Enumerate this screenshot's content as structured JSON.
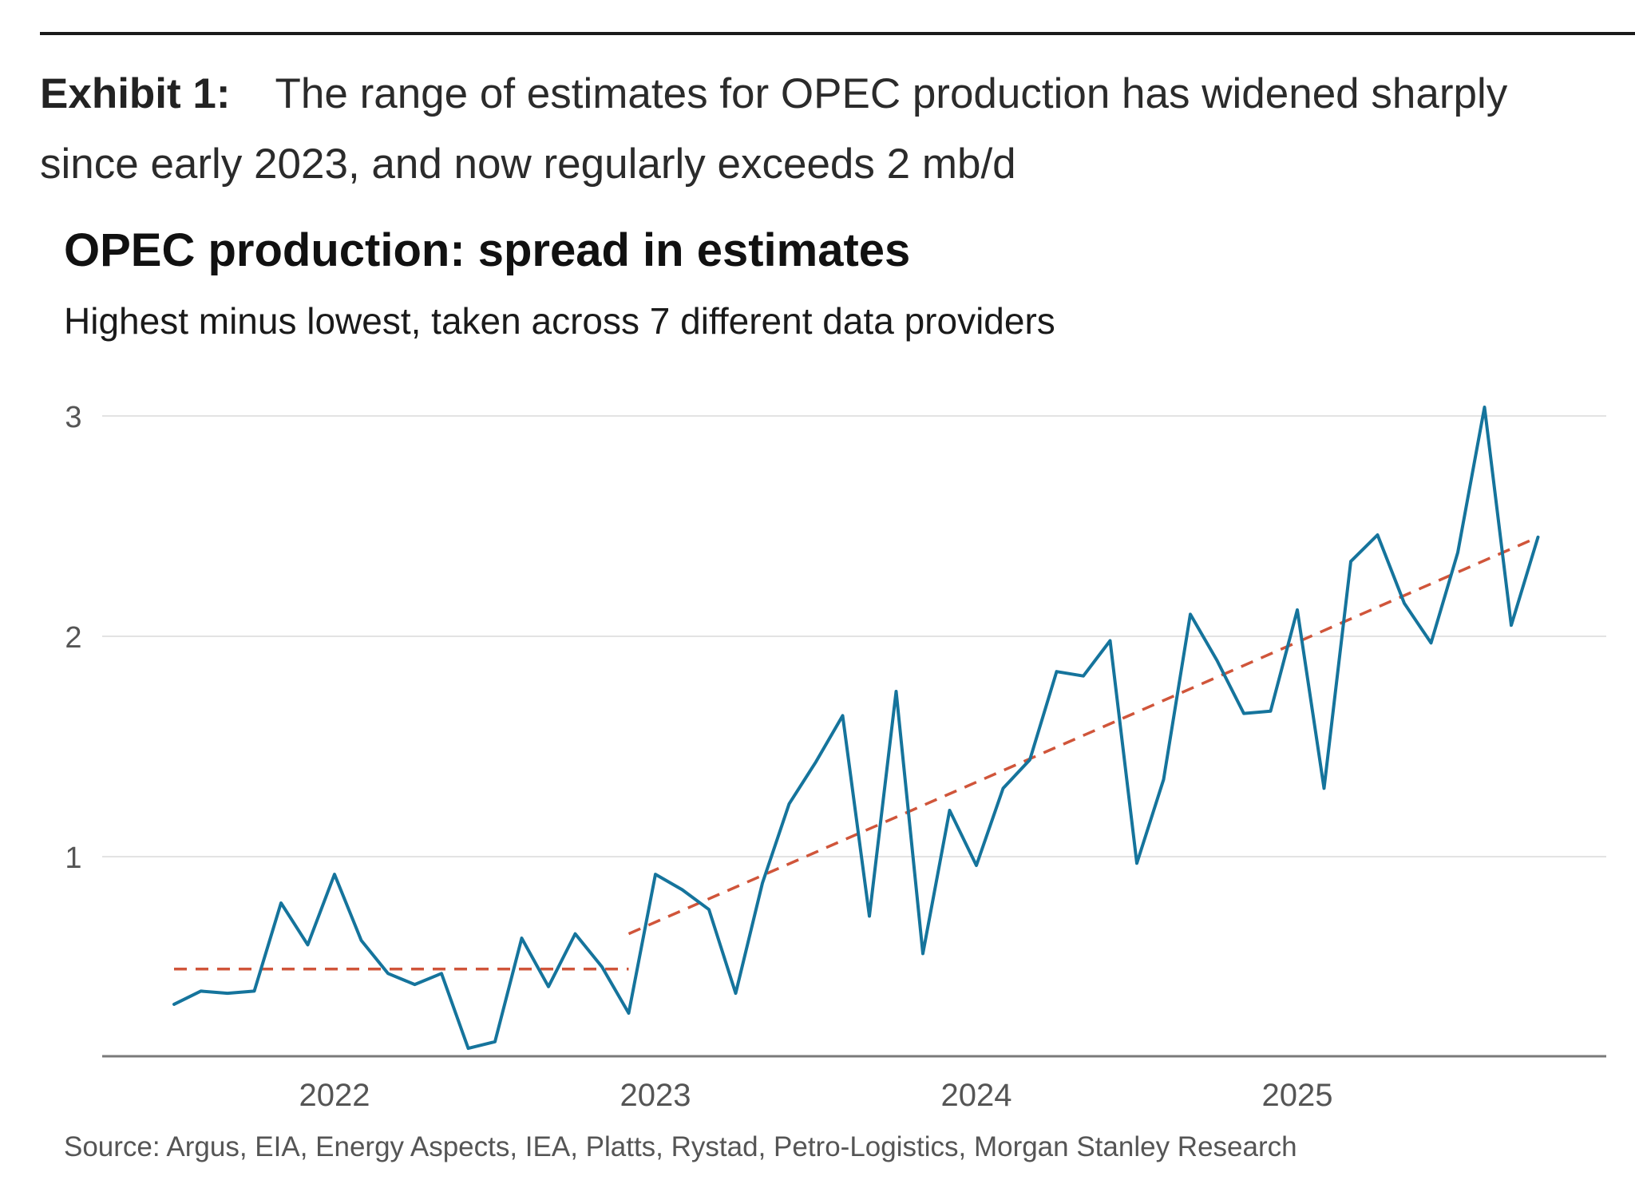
{
  "exhibit": {
    "label": "Exhibit 1:",
    "caption": "The range of estimates for OPEC production has widened sharply since early 2023, and now regularly exceeds 2 mb/d"
  },
  "source": "Source: Argus, EIA, Energy Aspects, IEA, Platts, Rystad, Petro-Logistics, Morgan Stanley Research",
  "colors": {
    "series": "#15749c",
    "trend": "#d0553a",
    "grid": "#e3e3e3",
    "axis": "#7a7a7a"
  },
  "chart_data": {
    "type": "line",
    "title": "OPEC production: spread in estimates",
    "subtitle": "Highest minus lowest, taken across 7 different data providers",
    "xlabel": "",
    "ylabel": "",
    "x_ticks": [
      "2022",
      "2023",
      "2024",
      "2025"
    ],
    "y_ticks": [
      "1",
      "2",
      "3"
    ],
    "ylim": [
      0.05,
      3.1
    ],
    "grid": "horizontal",
    "x_start": "2021-07",
    "x_unit": "month",
    "series": [
      {
        "values": [
          0.33,
          0.39,
          0.38,
          0.39,
          0.79,
          0.6,
          0.92,
          0.62,
          0.47,
          0.42,
          0.47,
          0.13,
          0.16,
          0.63,
          0.41,
          0.65,
          0.5,
          0.29,
          0.92,
          0.85,
          0.76,
          0.38,
          0.88,
          1.24,
          1.43,
          1.64,
          0.73,
          1.75,
          0.56,
          1.21,
          0.96,
          1.31,
          1.44,
          1.84,
          1.82,
          1.98,
          0.97,
          1.35,
          2.1,
          1.89,
          1.65,
          1.66,
          2.12,
          1.31,
          2.34,
          2.46,
          2.15,
          1.97,
          2.38,
          3.04,
          2.05,
          2.45
        ]
      }
    ],
    "trend_lines": [
      {
        "x": [
          "2021-07",
          "2022-12"
        ],
        "y": [
          0.49,
          0.49
        ]
      },
      {
        "x": [
          "2022-12",
          "2025-10"
        ],
        "y": [
          0.65,
          2.45
        ]
      }
    ]
  }
}
